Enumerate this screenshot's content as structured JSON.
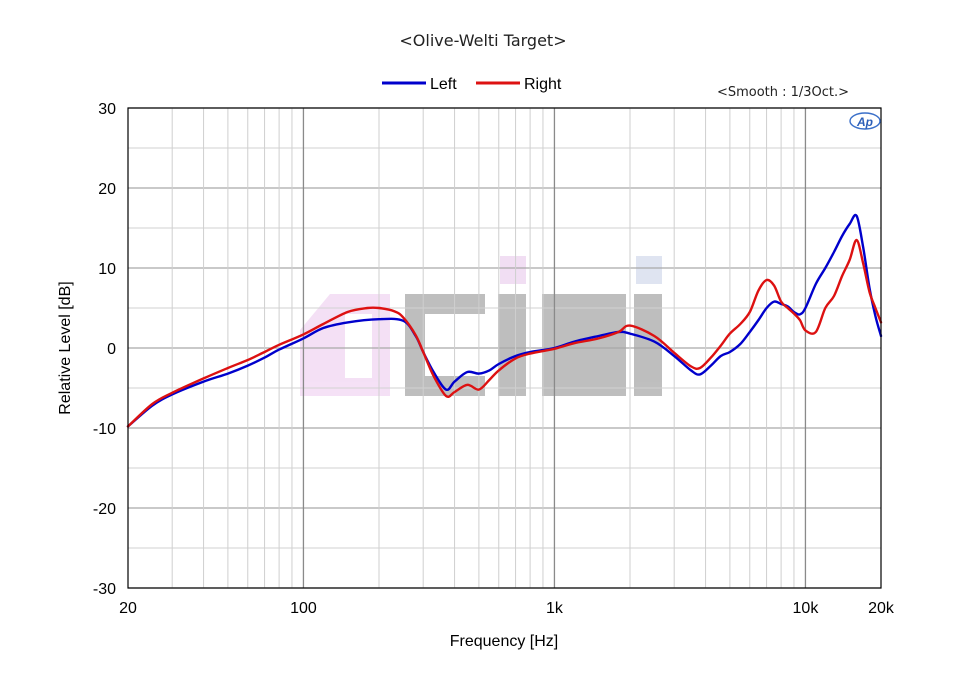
{
  "chart_data": {
    "type": "line",
    "title": "<Olive-Welti Target>",
    "annotation": "<Smooth : 1/3Oct.>",
    "logo_text": "AP",
    "watermark_text": "DCIMI",
    "xlabel": "Frequency [Hz]",
    "ylabel": "Relative Level [dB]",
    "x_scale": "log",
    "xlim": [
      20,
      20000
    ],
    "ylim": [
      -30,
      30
    ],
    "x_tick_values": [
      20,
      100,
      1000,
      10000,
      20000
    ],
    "x_tick_labels": [
      "20",
      "100",
      "1k",
      "10k",
      "20k"
    ],
    "y_tick_values": [
      30,
      20,
      10,
      0,
      -10,
      -20,
      -30
    ],
    "y_tick_labels": [
      "30",
      "20",
      "10",
      "0",
      "-10",
      "-20",
      "-30"
    ],
    "grid": true,
    "legend_position": "top-center",
    "series": [
      {
        "name": "Left",
        "color": "#0000cc",
        "x": [
          20,
          25,
          30,
          40,
          50,
          60,
          70,
          80,
          100,
          120,
          150,
          200,
          250,
          280,
          300,
          330,
          370,
          400,
          450,
          500,
          550,
          600,
          700,
          800,
          1000,
          1200,
          1500,
          1800,
          2000,
          2500,
          3000,
          3500,
          3800,
          4200,
          4600,
          5000,
          5500,
          6000,
          6500,
          7000,
          7500,
          8000,
          8500,
          9000,
          9500,
          10000,
          11000,
          12000,
          13000,
          14000,
          15000,
          16000,
          17000,
          18000,
          19000,
          20000
        ],
        "y": [
          -9.8,
          -7.2,
          -5.8,
          -4.2,
          -3.2,
          -2.2,
          -1.2,
          -0.2,
          1.2,
          2.5,
          3.2,
          3.6,
          3.4,
          1.5,
          -0.5,
          -3.0,
          -5.2,
          -4.2,
          -3.0,
          -3.2,
          -2.8,
          -2.0,
          -1.0,
          -0.5,
          0.0,
          0.8,
          1.5,
          2.0,
          1.8,
          0.8,
          -1.0,
          -2.8,
          -3.3,
          -2.2,
          -1.0,
          -0.5,
          0.5,
          2.0,
          3.5,
          5.0,
          5.8,
          5.5,
          5.2,
          4.5,
          4.2,
          5.0,
          8.0,
          10.0,
          12.0,
          14.0,
          15.5,
          16.5,
          12.5,
          7.5,
          4.0,
          1.5
        ]
      },
      {
        "name": "Right",
        "color": "#dd1111",
        "x": [
          20,
          25,
          30,
          40,
          50,
          60,
          70,
          80,
          100,
          120,
          150,
          180,
          200,
          230,
          250,
          280,
          300,
          330,
          370,
          400,
          450,
          500,
          550,
          600,
          700,
          800,
          1000,
          1200,
          1500,
          1800,
          2000,
          2500,
          3000,
          3500,
          3800,
          4200,
          4600,
          5000,
          5500,
          6000,
          6500,
          7000,
          7500,
          8000,
          8500,
          9000,
          9500,
          10000,
          11000,
          12000,
          13000,
          14000,
          15000,
          16000,
          17000,
          18000,
          19000,
          20000
        ],
        "y": [
          -9.8,
          -7.0,
          -5.6,
          -3.8,
          -2.5,
          -1.5,
          -0.5,
          0.4,
          1.7,
          3.0,
          4.5,
          5.0,
          5.0,
          4.6,
          3.8,
          1.6,
          -0.5,
          -3.5,
          -6.0,
          -5.5,
          -4.6,
          -5.2,
          -4.0,
          -2.8,
          -1.3,
          -0.7,
          -0.1,
          0.6,
          1.2,
          2.0,
          2.8,
          1.5,
          -0.6,
          -2.3,
          -2.5,
          -1.2,
          0.3,
          1.8,
          3.0,
          4.5,
          7.2,
          8.5,
          7.8,
          5.8,
          5.0,
          4.3,
          3.5,
          2.2,
          2.0,
          5.0,
          6.5,
          9.0,
          11.0,
          13.5,
          10.5,
          7.0,
          5.0,
          3.2
        ]
      }
    ]
  }
}
